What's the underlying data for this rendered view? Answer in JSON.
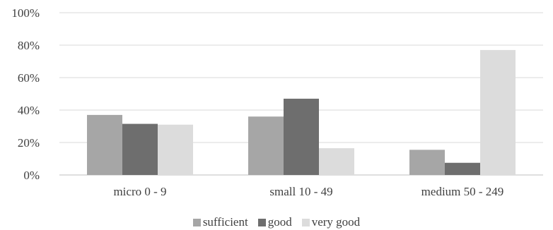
{
  "chart_data": {
    "type": "bar",
    "categories": [
      "micro 0 - 9",
      "small 10 - 49",
      "medium 50 - 249"
    ],
    "series": [
      {
        "name": "sufficient",
        "values": [
          37,
          36,
          15.5
        ],
        "color": "#a6a6a6"
      },
      {
        "name": "good",
        "values": [
          31.5,
          47,
          7.5
        ],
        "color": "#6e6e6e"
      },
      {
        "name": "very good",
        "values": [
          31,
          16.5,
          77
        ],
        "color": "#dcdcdc"
      }
    ],
    "y_ticks": [
      "0%",
      "20%",
      "40%",
      "60%",
      "80%",
      "100%"
    ],
    "ylim": [
      0,
      100
    ],
    "grid": true,
    "legend_position": "bottom",
    "title": "",
    "xlabel": "",
    "ylabel": ""
  }
}
